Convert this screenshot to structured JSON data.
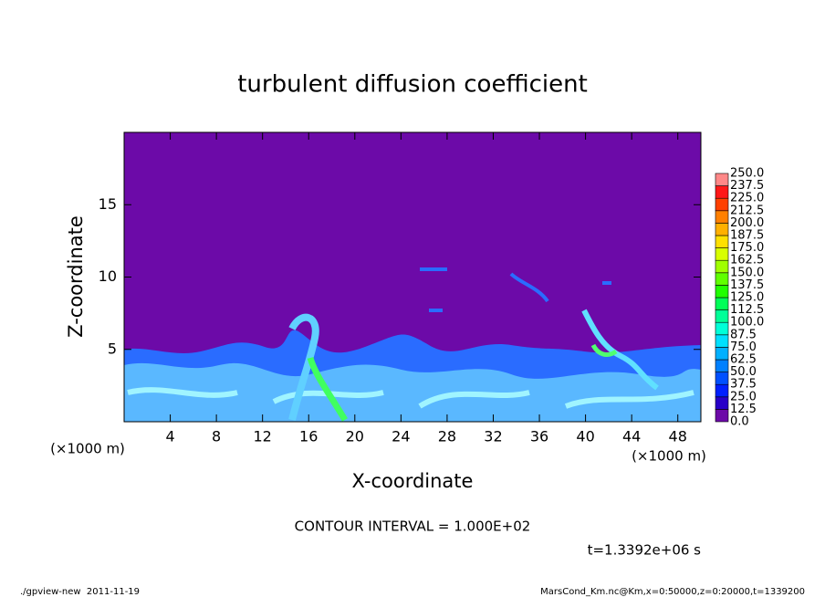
{
  "chart_data": {
    "type": "contour",
    "title": "turbulent diffusion coefficient",
    "x_label": "X-coordinate",
    "y_label": "Z-coordinate",
    "x_unit_left": "(×1000 m)",
    "x_unit_right": "(×1000 m)",
    "contour_interval": "CONTOUR INTERVAL = 1.000E+02",
    "time_label": "t=1.3392e+06 s",
    "xlim": [
      0,
      50
    ],
    "xticks": [
      4,
      8,
      12,
      16,
      20,
      24,
      28,
      32,
      36,
      40,
      44,
      48
    ],
    "ylim": [
      0,
      20
    ],
    "yticks": [
      5,
      10,
      15
    ],
    "background_color": "#6c0aa8",
    "colorbar": {
      "clim": [
        0,
        250
      ],
      "ticks": [
        {
          "value": 0,
          "label": "0.0"
        },
        12.5,
        {
          "value": 25,
          "label": "25.0"
        },
        37.5,
        {
          "value": 50,
          "label": "50.0"
        },
        62.5,
        {
          "value": 75,
          "label": "75.0"
        },
        87.5,
        {
          "value": 100,
          "label": "100.0"
        },
        112.5,
        {
          "value": 125,
          "label": "125.0"
        },
        137.5,
        {
          "value": 150,
          "label": "150.0"
        },
        162.5,
        {
          "value": 175,
          "label": "175.0"
        },
        187.5,
        {
          "value": 200,
          "label": "200.0"
        },
        212.5,
        {
          "value": 225,
          "label": "225.0"
        },
        237.5,
        {
          "value": 250,
          "label": "250.0"
        }
      ],
      "colors": [
        "#6c0aa8",
        "#2800c8",
        "#0020ff",
        "#0050ff",
        "#0080ff",
        "#00b0ff",
        "#00e0ff",
        "#00ffd8",
        "#00ff98",
        "#00ff58",
        "#20ff00",
        "#60ff00",
        "#a0ff00",
        "#d8ff00",
        "#ffe000",
        "#ffb000",
        "#ff8000",
        "#ff4000",
        "#ff1818",
        "#ff8888"
      ]
    }
  },
  "footer": {
    "left": "./gpview-new  2011-11-19",
    "right": "MarsCond_Km.nc@Km,x=0:50000,z=0:20000,t=1339200"
  }
}
